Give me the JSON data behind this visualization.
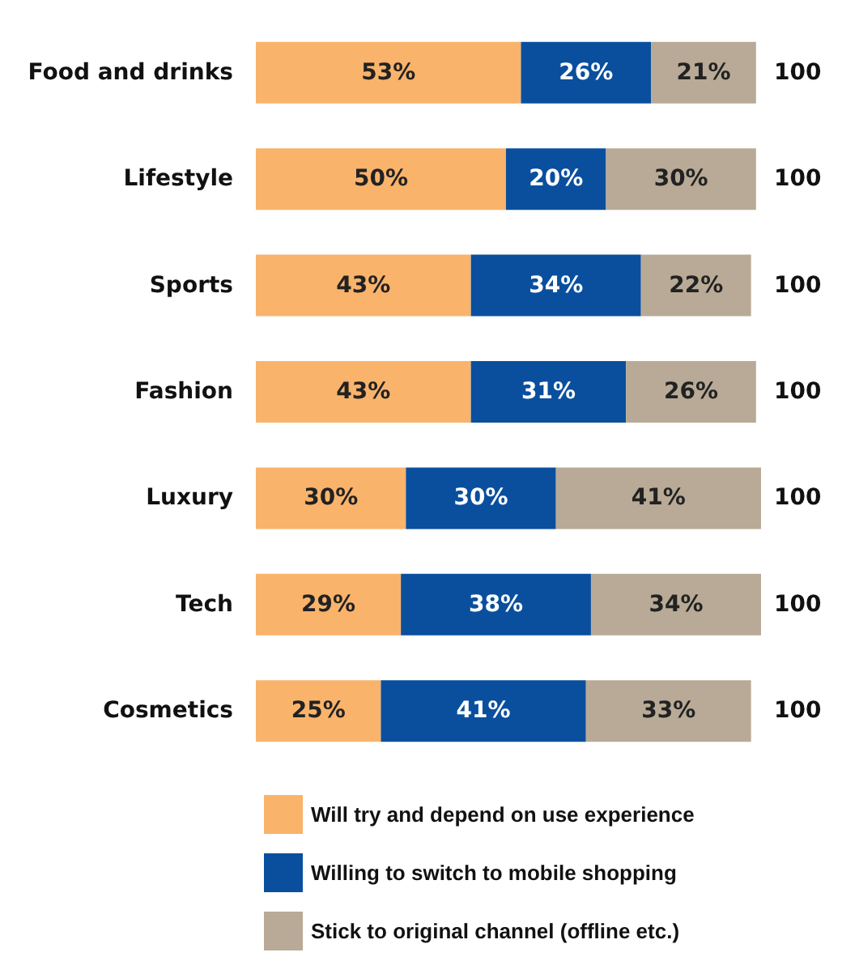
{
  "chart_data": {
    "type": "bar",
    "orientation": "horizontal",
    "stacked": true,
    "legend": "bottom",
    "categories": [
      "Food and drinks",
      "Lifestyle",
      "Sports",
      "Fashion",
      "Luxury",
      "Tech",
      "Cosmetics"
    ],
    "series": [
      {
        "name": "Will try and depend on use experience",
        "color": "#f9b36b",
        "values": [
          53,
          50,
          43,
          43,
          30,
          29,
          25
        ],
        "value_labels": [
          "53%",
          "50%",
          "43%",
          "43%",
          "30%",
          "29%",
          "25%"
        ]
      },
      {
        "name": "Willing to switch to mobile shopping",
        "color": "#0a4f9e",
        "values": [
          26,
          20,
          34,
          31,
          30,
          38,
          41
        ],
        "value_labels": [
          "26%",
          "20%",
          "34%",
          "31%",
          "30%",
          "38%",
          "41%"
        ]
      },
      {
        "name": "Stick to original channel (offline etc.)",
        "color": "#b8aa96",
        "values": [
          21,
          30,
          22,
          26,
          41,
          34,
          33
        ],
        "value_labels": [
          "21%",
          "30%",
          "22%",
          "26%",
          "41%",
          "34%",
          "33%"
        ]
      }
    ],
    "totals": [
      "100",
      "100",
      "100",
      "100",
      "100",
      "100",
      "100"
    ]
  }
}
